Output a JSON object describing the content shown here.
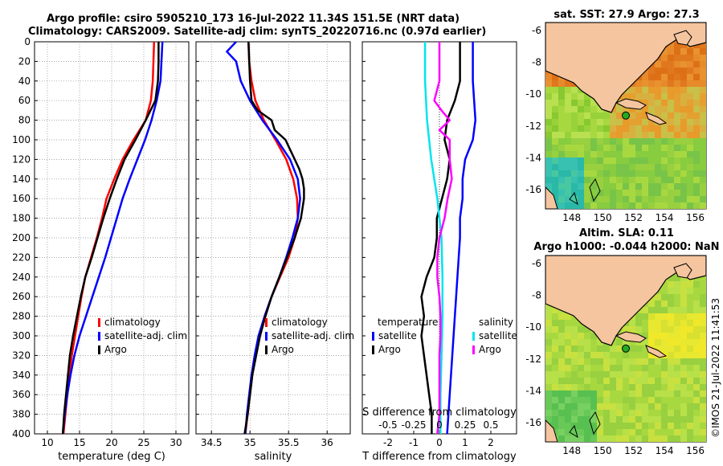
{
  "titles": {
    "line1": "Argo profile: csiro 5905210_173 16-Jul-2022 11.34S 151.5E (NRT data)",
    "line2": "Climatology: CARS2009. Satellite-adj clim: synTS_20220716.nc (0.97d earlier)"
  },
  "colors": {
    "climatology": "#ff0000",
    "satellite": "#0000ff",
    "argo": "#000000",
    "salinity_diff": "#00e5ee",
    "salinity_sat": "#ff00ff"
  },
  "chart_data": [
    {
      "type": "line",
      "title": "",
      "xlabel": "temperature (deg C)",
      "ylabel": "",
      "xlim": [
        8,
        32
      ],
      "ylim": [
        400,
        0
      ],
      "xticks": [
        "10",
        "15",
        "20",
        "25",
        "30"
      ],
      "yticks": [
        "0",
        "20",
        "40",
        "60",
        "80",
        "100",
        "120",
        "140",
        "160",
        "180",
        "200",
        "220",
        "240",
        "260",
        "280",
        "300",
        "320",
        "340",
        "360",
        "380",
        "400"
      ],
      "legend": [
        "climatology",
        "satellite-adj. clim",
        "Argo"
      ],
      "grid": true,
      "series": [
        {
          "name": "climatology",
          "depth": [
            0,
            40,
            60,
            80,
            100,
            120,
            140,
            160,
            180,
            200,
            220,
            240,
            260,
            280,
            300,
            320,
            340,
            360,
            380,
            400
          ],
          "values": [
            26.6,
            26.4,
            26.1,
            25.3,
            23.4,
            21.7,
            20.4,
            19.2,
            18.5,
            17.7,
            16.8,
            15.9,
            15.3,
            14.8,
            14.3,
            13.8,
            13.4,
            13.1,
            12.8,
            12.5
          ]
        },
        {
          "name": "satellite-adj. clim",
          "depth": [
            0,
            40,
            60,
            80,
            100,
            120,
            140,
            160,
            180,
            200,
            220,
            240,
            260,
            280,
            300,
            320,
            340,
            360,
            380,
            400
          ],
          "values": [
            27.9,
            27.6,
            27.0,
            26.2,
            25.2,
            24.0,
            22.8,
            21.7,
            20.8,
            19.9,
            19.0,
            18.0,
            17.0,
            16.0,
            15.0,
            14.2,
            13.6,
            13.1,
            12.7,
            12.4
          ]
        },
        {
          "name": "Argo",
          "depth": [
            0,
            20,
            40,
            60,
            80,
            100,
            120,
            140,
            160,
            180,
            200,
            220,
            240,
            260,
            280,
            300,
            320,
            340,
            360,
            380,
            400
          ],
          "values": [
            27.3,
            27.3,
            27.2,
            26.8,
            25.3,
            23.7,
            22.0,
            20.8,
            19.7,
            18.7,
            17.8,
            16.9,
            15.9,
            15.2,
            14.6,
            14.0,
            13.5,
            13.2,
            12.9,
            12.6,
            12.4
          ]
        }
      ]
    },
    {
      "type": "line",
      "xlabel": "salinity",
      "xlim": [
        34.3,
        36.3
      ],
      "ylim": [
        400,
        0
      ],
      "xticks": [
        "34.5",
        "35",
        "35.5",
        "36"
      ],
      "legend": [
        "climatology",
        "satellite-adj. clim",
        "Argo"
      ],
      "grid": true,
      "series": [
        {
          "name": "climatology",
          "depth": [
            0,
            20,
            40,
            60,
            80,
            100,
            120,
            140,
            160,
            180,
            200,
            220,
            240,
            260,
            280,
            300,
            320,
            340,
            360,
            380,
            400
          ],
          "values": [
            34.98,
            34.99,
            35.02,
            35.07,
            35.18,
            35.33,
            35.47,
            35.56,
            35.61,
            35.62,
            35.58,
            35.5,
            35.39,
            35.28,
            35.19,
            35.12,
            35.07,
            35.03,
            35.0,
            34.97,
            34.94
          ]
        },
        {
          "name": "satellite-adj. clim",
          "depth": [
            0,
            10,
            20,
            40,
            60,
            80,
            100,
            120,
            140,
            160,
            180,
            200,
            220,
            240,
            260,
            280,
            300,
            320,
            340,
            360,
            380,
            400
          ],
          "values": [
            34.82,
            34.7,
            34.82,
            34.88,
            35.0,
            35.16,
            35.35,
            35.52,
            35.62,
            35.65,
            35.62,
            35.55,
            35.47,
            35.38,
            35.28,
            35.19,
            35.11,
            35.06,
            35.02,
            34.99,
            34.96,
            34.94
          ]
        },
        {
          "name": "Argo",
          "depth": [
            0,
            40,
            60,
            70,
            80,
            90,
            100,
            110,
            120,
            130,
            140,
            150,
            160,
            170,
            180,
            200,
            220,
            240,
            260,
            280,
            300,
            320,
            340,
            360,
            380,
            400
          ],
          "values": [
            34.98,
            35.0,
            35.02,
            35.1,
            35.28,
            35.32,
            35.46,
            35.52,
            35.58,
            35.64,
            35.68,
            35.7,
            35.7,
            35.68,
            35.66,
            35.58,
            35.48,
            35.38,
            35.28,
            35.2,
            35.13,
            35.08,
            35.03,
            35.0,
            34.97,
            34.93
          ]
        }
      ]
    },
    {
      "type": "line",
      "xlabel": "T difference from climatology",
      "xlim": [
        -3,
        3
      ],
      "ylim": [
        400,
        0
      ],
      "xticks": [
        "-2",
        "-1",
        "0",
        "1",
        "2"
      ],
      "top_axis_label": "S difference from climatology",
      "top_ticks": [
        "-0.5",
        "-0.25",
        "0",
        "0.25",
        "0.5"
      ],
      "legend_left": {
        "title": "temperature",
        "items": [
          "satellite",
          "Argo"
        ]
      },
      "legend_right": {
        "title": "salinity",
        "items": [
          "satellite",
          "Argo"
        ]
      },
      "series": [
        {
          "name": "temperature satellite",
          "depth": [
            0,
            40,
            80,
            100,
            120,
            140,
            160,
            180,
            200,
            240,
            280,
            320,
            360,
            400
          ],
          "values": [
            1.3,
            1.3,
            1.4,
            1.3,
            1.0,
            0.9,
            0.9,
            0.8,
            0.8,
            0.7,
            0.6,
            0.5,
            0.4,
            0.3
          ]
        },
        {
          "name": "temperature Argo",
          "depth": [
            0,
            20,
            40,
            60,
            80,
            100,
            120,
            140,
            160,
            180,
            200,
            220,
            240,
            260,
            280,
            300,
            320,
            340,
            360,
            380,
            400
          ],
          "values": [
            0.8,
            0.8,
            0.8,
            0.6,
            0.3,
            0.2,
            0.4,
            0.3,
            0.1,
            -0.1,
            -0.1,
            -0.2,
            -0.5,
            -0.7,
            -0.6,
            -0.7,
            -0.6,
            -0.5,
            -0.4,
            -0.3,
            -0.3
          ]
        },
        {
          "name": "salinity satellite",
          "depth": [
            0,
            40,
            80,
            100,
            120,
            140,
            160,
            180,
            200,
            240,
            280,
            320,
            360,
            400
          ],
          "values": [
            -0.14,
            -0.14,
            -0.12,
            -0.1,
            -0.08,
            -0.05,
            -0.02,
            0.0,
            0.02,
            0.03,
            0.03,
            0.02,
            0.01,
            0.01
          ]
        },
        {
          "name": "salinity Argo",
          "depth": [
            0,
            40,
            60,
            70,
            80,
            90,
            100,
            120,
            140,
            160,
            180,
            200,
            220,
            240,
            260,
            280,
            300,
            320,
            340,
            360,
            380,
            400
          ],
          "values": [
            0.0,
            0.0,
            -0.05,
            0.02,
            0.1,
            0.0,
            0.1,
            0.1,
            0.12,
            0.08,
            0.05,
            0.0,
            -0.02,
            -0.02,
            0.0,
            0.01,
            0.01,
            0.0,
            0.0,
            0.0,
            0.0,
            -0.02
          ]
        }
      ]
    },
    {
      "type": "heatmap",
      "title": "sat. SST: 27.9 Argo: 27.3",
      "xlim": [
        146.3,
        156.7
      ],
      "ylim": [
        -17.2,
        -5.5
      ],
      "xticks": [
        "148",
        "150",
        "152",
        "154",
        "156"
      ],
      "yticks": [
        "-6",
        "-8",
        "-10",
        "-12",
        "-14",
        "-16"
      ],
      "marker": {
        "lon": 151.5,
        "lat": -11.34
      }
    },
    {
      "type": "heatmap",
      "title": "Altim. SLA: 0.11",
      "subtitle": "Argo h1000: -0.044 h2000: NaN",
      "xlim": [
        146.3,
        156.7
      ],
      "ylim": [
        -17.2,
        -5.5
      ],
      "xticks": [
        "148",
        "150",
        "152",
        "154",
        "156"
      ],
      "yticks": [
        "-6",
        "-8",
        "-10",
        "-12",
        "-14",
        "-16"
      ],
      "marker": {
        "lon": 151.5,
        "lat": -11.34
      }
    }
  ],
  "legends": {
    "profile": [
      "climatology",
      "satellite-adj. clim",
      "Argo"
    ],
    "diff_temp_title": "temperature",
    "diff_sal_title": "salinity",
    "diff_items": [
      "satellite",
      "Argo"
    ]
  },
  "watermark": "©IMOS 21-Jul-2022 11:41:53"
}
